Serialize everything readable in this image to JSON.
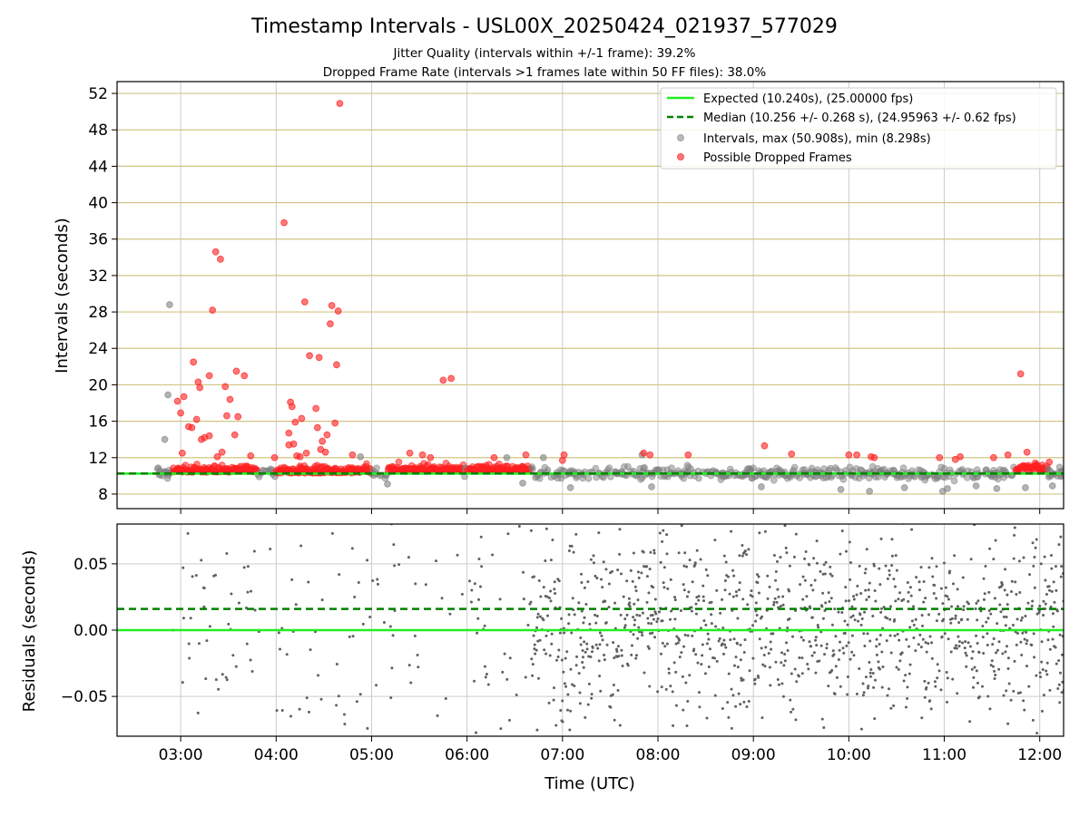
{
  "figure": {
    "title": "Timestamp Intervals - USL00X_20250424_021937_577029",
    "subtitle_1": "Jitter Quality (intervals within +/-1 frame): 39.2%",
    "subtitle_2": "Dropped Frame Rate (intervals >1 frames late within 50 FF files): 38.0%"
  },
  "chart_data": [
    {
      "type": "scatter",
      "panel": "top",
      "ylabel": "Intervals (seconds)",
      "xlabel": "",
      "xlim": [
        "02:20",
        "12:15"
      ],
      "ylim": [
        6.4,
        53.3
      ],
      "y_ticks": [
        8,
        12,
        16,
        20,
        24,
        28,
        32,
        36,
        40,
        44,
        48,
        52
      ],
      "x_ticks": [
        "03:00",
        "04:00",
        "05:00",
        "06:00",
        "07:00",
        "08:00",
        "09:00",
        "10:00",
        "11:00",
        "12:00"
      ],
      "y_grid": "horizontal khaki lines",
      "x_grid": "vertical gray lines",
      "legend_position": "top-right",
      "reference_lines": [
        {
          "name": "Expected (10.240s), (25.00000 fps)",
          "value": 10.24,
          "style": "solid",
          "color": "#22ee22"
        },
        {
          "name": "Median (10.256 +/- 0.268 s), (24.95963 +/- 0.62 fps)",
          "value": 10.256,
          "style": "dashed",
          "color": "#008000"
        }
      ],
      "series": [
        {
          "name": "Intervals, max (50.908s), min (8.298s)",
          "color": "#808080",
          "band": {
            "center": 10.24,
            "spread": 0.45
          },
          "points": [
            {
              "x": "02:53",
              "y": 28.8
            },
            {
              "x": "02:52",
              "y": 18.9
            },
            {
              "x": "02:50",
              "y": 14.0
            },
            {
              "x": "04:53",
              "y": 12.1
            },
            {
              "x": "05:10",
              "y": 9.1
            },
            {
              "x": "06:25",
              "y": 12.0
            },
            {
              "x": "06:35",
              "y": 9.2
            },
            {
              "x": "06:48",
              "y": 12.0
            },
            {
              "x": "07:05",
              "y": 8.7
            },
            {
              "x": "07:50",
              "y": 12.3
            },
            {
              "x": "07:56",
              "y": 8.8
            },
            {
              "x": "09:05",
              "y": 8.8
            },
            {
              "x": "09:55",
              "y": 8.5
            },
            {
              "x": "10:13",
              "y": 8.3
            },
            {
              "x": "10:35",
              "y": 8.7
            },
            {
              "x": "10:59",
              "y": 8.3
            },
            {
              "x": "11:02",
              "y": 8.6
            },
            {
              "x": "11:20",
              "y": 8.9
            },
            {
              "x": "11:33",
              "y": 8.6
            },
            {
              "x": "11:51",
              "y": 8.7
            },
            {
              "x": "12:08",
              "y": 8.9
            }
          ]
        },
        {
          "name": "Possible Dropped Frames",
          "color": "#ff2020",
          "clusters": [
            {
              "start": "02:55",
              "end": "03:48",
              "center": 10.5
            },
            {
              "start": "04:00",
              "end": "05:00",
              "center": 10.4
            },
            {
              "start": "05:10",
              "end": "05:58",
              "center": 10.6
            },
            {
              "start": "06:00",
              "end": "06:40",
              "center": 10.6
            },
            {
              "start": "11:45",
              "end": "12:05",
              "center": 10.7
            }
          ],
          "points": [
            {
              "x": "03:22",
              "y": 34.6
            },
            {
              "x": "03:25",
              "y": 33.8
            },
            {
              "x": "03:20",
              "y": 28.2
            },
            {
              "x": "03:08",
              "y": 22.5
            },
            {
              "x": "03:35",
              "y": 21.5
            },
            {
              "x": "03:40",
              "y": 21.0
            },
            {
              "x": "03:18",
              "y": 21.0
            },
            {
              "x": "03:11",
              "y": 20.3
            },
            {
              "x": "03:28",
              "y": 19.8
            },
            {
              "x": "03:12",
              "y": 19.7
            },
            {
              "x": "03:02",
              "y": 18.7
            },
            {
              "x": "02:58",
              "y": 18.2
            },
            {
              "x": "03:00",
              "y": 16.9
            },
            {
              "x": "03:31",
              "y": 18.4
            },
            {
              "x": "03:29",
              "y": 16.6
            },
            {
              "x": "03:36",
              "y": 16.5
            },
            {
              "x": "03:10",
              "y": 16.2
            },
            {
              "x": "03:05",
              "y": 15.4
            },
            {
              "x": "03:07",
              "y": 15.3
            },
            {
              "x": "03:18",
              "y": 14.4
            },
            {
              "x": "03:15",
              "y": 14.2
            },
            {
              "x": "03:13",
              "y": 14.0
            },
            {
              "x": "03:34",
              "y": 14.5
            },
            {
              "x": "03:01",
              "y": 12.5
            },
            {
              "x": "03:26",
              "y": 12.6
            },
            {
              "x": "03:44",
              "y": 12.2
            },
            {
              "x": "03:23",
              "y": 12.1
            },
            {
              "x": "04:05",
              "y": 37.8
            },
            {
              "x": "04:18",
              "y": 29.1
            },
            {
              "x": "04:35",
              "y": 28.7
            },
            {
              "x": "04:39",
              "y": 28.1
            },
            {
              "x": "04:34",
              "y": 26.7
            },
            {
              "x": "04:21",
              "y": 23.2
            },
            {
              "x": "04:27",
              "y": 23.0
            },
            {
              "x": "04:38",
              "y": 22.2
            },
            {
              "x": "04:09",
              "y": 18.1
            },
            {
              "x": "04:10",
              "y": 17.6
            },
            {
              "x": "04:25",
              "y": 17.4
            },
            {
              "x": "04:16",
              "y": 16.3
            },
            {
              "x": "04:12",
              "y": 15.9
            },
            {
              "x": "04:37",
              "y": 15.8
            },
            {
              "x": "04:26",
              "y": 15.3
            },
            {
              "x": "04:08",
              "y": 14.7
            },
            {
              "x": "04:32",
              "y": 14.5
            },
            {
              "x": "04:29",
              "y": 13.8
            },
            {
              "x": "04:08",
              "y": 13.4
            },
            {
              "x": "04:11",
              "y": 13.5
            },
            {
              "x": "04:28",
              "y": 12.9
            },
            {
              "x": "04:31",
              "y": 12.6
            },
            {
              "x": "04:19",
              "y": 12.5
            },
            {
              "x": "04:13",
              "y": 12.2
            },
            {
              "x": "04:15",
              "y": 12.1
            },
            {
              "x": "03:59",
              "y": 12.0
            },
            {
              "x": "04:48",
              "y": 12.3
            },
            {
              "x": "04:40",
              "y": 50.9
            },
            {
              "x": "05:45",
              "y": 20.5
            },
            {
              "x": "05:50",
              "y": 20.7
            },
            {
              "x": "05:24",
              "y": 12.5
            },
            {
              "x": "05:32",
              "y": 12.3
            },
            {
              "x": "05:37",
              "y": 12.0
            },
            {
              "x": "06:17",
              "y": 12.0
            },
            {
              "x": "06:37",
              "y": 12.3
            },
            {
              "x": "07:01",
              "y": 12.3
            },
            {
              "x": "07:00",
              "y": 11.7
            },
            {
              "x": "07:51",
              "y": 12.5
            },
            {
              "x": "07:55",
              "y": 12.3
            },
            {
              "x": "08:19",
              "y": 12.3
            },
            {
              "x": "09:07",
              "y": 13.3
            },
            {
              "x": "09:24",
              "y": 12.4
            },
            {
              "x": "10:00",
              "y": 12.3
            },
            {
              "x": "10:05",
              "y": 12.3
            },
            {
              "x": "10:14",
              "y": 12.1
            },
            {
              "x": "10:16",
              "y": 12.0
            },
            {
              "x": "10:57",
              "y": 12.0
            },
            {
              "x": "11:10",
              "y": 12.1
            },
            {
              "x": "11:07",
              "y": 11.8
            },
            {
              "x": "11:31",
              "y": 12.0
            },
            {
              "x": "11:40",
              "y": 12.3
            },
            {
              "x": "11:48",
              "y": 21.2
            },
            {
              "x": "11:52",
              "y": 12.6
            },
            {
              "x": "12:06",
              "y": 11.5
            }
          ]
        }
      ]
    },
    {
      "type": "scatter",
      "panel": "bottom",
      "ylabel": "Residuals (seconds)",
      "xlabel": "Time (UTC)",
      "xlim": [
        "02:20",
        "12:15"
      ],
      "ylim": [
        -0.08,
        0.08
      ],
      "y_ticks": [
        {
          "value": 0.05,
          "label": "0.05"
        },
        {
          "value": 0.0,
          "label": "0.00"
        },
        {
          "value": -0.05,
          "label": "−0.05"
        }
      ],
      "x_ticks": [
        "03:00",
        "04:00",
        "05:00",
        "06:00",
        "07:00",
        "08:00",
        "09:00",
        "10:00",
        "11:00",
        "12:00"
      ],
      "grid": true,
      "reference_lines": [
        {
          "name": "Expected",
          "value": 0.0,
          "style": "solid",
          "color": "#22ee22"
        },
        {
          "name": "Median",
          "value": 0.016,
          "style": "dashed",
          "color": "#008000"
        }
      ],
      "series": [
        {
          "name": "",
          "color": "#606060",
          "distribution": "uniform scatter between -0.08 and 0.08, sparse before 06:40, dense after 06:40, centered slightly above 0"
        }
      ]
    }
  ],
  "colors": {
    "expected": "#22ee22",
    "median": "#008000",
    "intervals": "#808080",
    "dropped": "#ff2020",
    "hgrid": "#d2c483",
    "vgrid": "#cccccc",
    "residuals": "#606060"
  }
}
